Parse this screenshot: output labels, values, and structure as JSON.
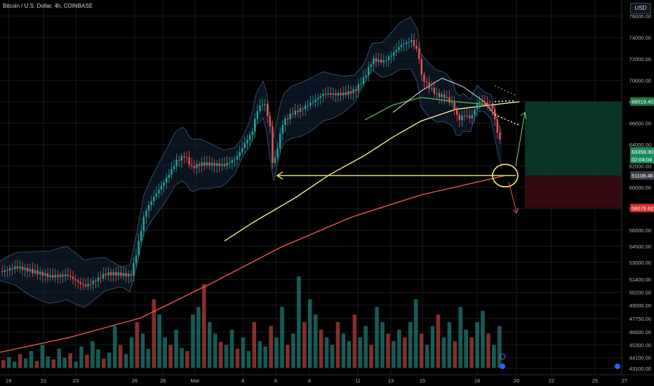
{
  "header": {
    "title": "Bitcoin / U.S. Dollar, 4h, COINBASE",
    "currency_button": "USD"
  },
  "price_labels": {
    "current_price": "63358.90",
    "countdown": "02:04:04",
    "target": "68019.40",
    "entry": "61108.46",
    "stop": "58078.62"
  },
  "colors": {
    "bull": "#26a69a",
    "bear": "#ef5350",
    "ma_yellow": "#f5f08c",
    "ma_red": "#ef5350",
    "ma_green": "#4caf50",
    "bollinger": "#5b7fa5",
    "profit_zone": "#0b3a2a",
    "loss_zone": "#3a0a12",
    "annotation": "#f2ef6a"
  },
  "chart_data": {
    "type": "candlestick",
    "ylim": [
      42500,
      77500
    ],
    "y_ticks": [
      43100,
      44100,
      45300,
      46500,
      47750,
      49000,
      50200,
      51400,
      53000,
      54500,
      56000,
      58000,
      60000,
      62000,
      64000,
      66000,
      68000,
      70000,
      72000,
      74000,
      76000
    ],
    "x_ticks": [
      "19",
      "21",
      "23",
      "26",
      "28",
      "Mar",
      "4",
      "6",
      "8",
      "11",
      "13",
      "15",
      "18",
      "20",
      "22",
      "25",
      "27"
    ],
    "price_path": [
      [
        0,
        52200
      ],
      [
        22,
        52400
      ],
      [
        45,
        51900
      ],
      [
        70,
        51600
      ],
      [
        95,
        52000
      ],
      [
        120,
        51000
      ],
      [
        150,
        51900
      ],
      [
        185,
        51500
      ],
      [
        192,
        53300
      ],
      [
        205,
        57500
      ],
      [
        215,
        58800
      ],
      [
        228,
        60200
      ],
      [
        240,
        61500
      ],
      [
        250,
        62700
      ],
      [
        262,
        63200
      ],
      [
        272,
        62000
      ],
      [
        285,
        62200
      ],
      [
        300,
        62000
      ],
      [
        318,
        61800
      ],
      [
        335,
        62500
      ],
      [
        350,
        64300
      ],
      [
        358,
        65200
      ],
      [
        365,
        67300
      ],
      [
        375,
        68200
      ],
      [
        383,
        66300
      ],
      [
        388,
        62000
      ],
      [
        395,
        64200
      ],
      [
        402,
        66300
      ],
      [
        415,
        67000
      ],
      [
        430,
        67300
      ],
      [
        445,
        67800
      ],
      [
        460,
        68500
      ],
      [
        475,
        68500
      ],
      [
        490,
        68700
      ],
      [
        505,
        69200
      ],
      [
        518,
        70500
      ],
      [
        530,
        72200
      ],
      [
        545,
        71900
      ],
      [
        558,
        72500
      ],
      [
        570,
        73200
      ],
      [
        585,
        73500
      ],
      [
        595,
        72300
      ],
      [
        600,
        70000
      ],
      [
        610,
        69200
      ],
      [
        622,
        68500
      ],
      [
        633,
        68500
      ],
      [
        645,
        67800
      ],
      [
        652,
        66500
      ],
      [
        660,
        67000
      ],
      [
        670,
        66700
      ],
      [
        680,
        68300
      ],
      [
        690,
        68000
      ],
      [
        700,
        67500
      ],
      [
        708,
        65000
      ],
      [
        715,
        63358.9
      ]
    ],
    "series": [
      {
        "name": "",
        "color": "#ef5350",
        "points": [
          [
            0,
            44600
          ],
          [
            100,
            46000
          ],
          [
            200,
            47800
          ],
          [
            300,
            51000
          ],
          [
            400,
            54400
          ],
          [
            500,
            57200
          ],
          [
            600,
            59300
          ],
          [
            720,
            61100
          ]
        ]
      },
      {
        "name": "",
        "color": "#f5f08c",
        "points": [
          [
            320,
            55000
          ],
          [
            360,
            56700
          ],
          [
            420,
            59000
          ],
          [
            470,
            61200
          ],
          [
            520,
            63000
          ],
          [
            560,
            64700
          ],
          [
            600,
            66200
          ],
          [
            650,
            67300
          ],
          [
            700,
            67700
          ],
          [
            740,
            68000
          ]
        ]
      },
      {
        "name": "",
        "color": "#4caf50",
        "points": [
          [
            520,
            66300
          ],
          [
            560,
            67700
          ],
          [
            600,
            68400
          ],
          [
            650,
            68000
          ],
          [
            700,
            67700
          ]
        ]
      }
    ],
    "volume": [
      10,
      14,
      8,
      18,
      12,
      22,
      9,
      30,
      15,
      11,
      25,
      13,
      19,
      8,
      28,
      17,
      35,
      24,
      12,
      20,
      55,
      30,
      18,
      40,
      60,
      45,
      25,
      90,
      70,
      40,
      30,
      50,
      26,
      22,
      70,
      80,
      110,
      60,
      45,
      34,
      30,
      50,
      25,
      40,
      22,
      60,
      35,
      28,
      55,
      40,
      80,
      30,
      45,
      120,
      60,
      90,
      70,
      50,
      40,
      30,
      60,
      45,
      35,
      70,
      40,
      55,
      30,
      80,
      60,
      45,
      35,
      50,
      40,
      60,
      90,
      45,
      30,
      55,
      70,
      40,
      60,
      35,
      80,
      50,
      40,
      60,
      75,
      45,
      30,
      55
    ],
    "position": {
      "entry": 61108.46,
      "target": 68019.4,
      "stop": 58078.62,
      "current": 63358.9
    },
    "annotations": [
      {
        "type": "horizontal-arrow",
        "from": 735,
        "to": 393,
        "price": 61100
      },
      {
        "type": "circle",
        "x": 720,
        "price": 61100
      },
      {
        "type": "projection-up",
        "to_price": 67000
      },
      {
        "type": "projection-down",
        "to_price": 57500
      }
    ]
  }
}
